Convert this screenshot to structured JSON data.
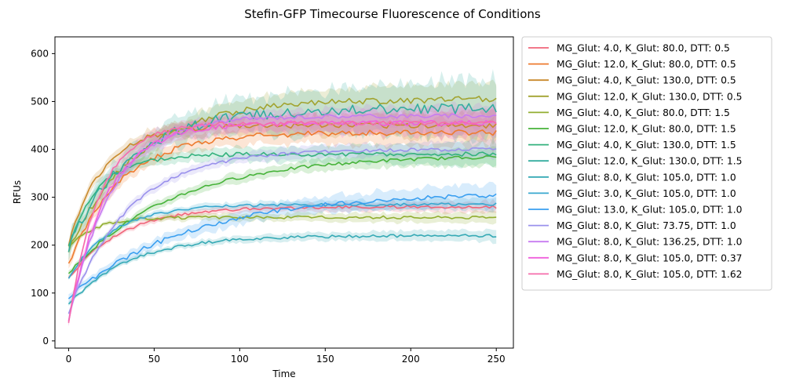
{
  "chart_data": {
    "type": "line",
    "title": "Stefin-GFP Timecourse Fluorescence of Conditions",
    "xlabel": "Time",
    "ylabel": "RFUs",
    "xlim": [
      -8,
      260
    ],
    "ylim": [
      -15,
      635
    ],
    "xticks": [
      0,
      50,
      100,
      150,
      200,
      250
    ],
    "yticks": [
      0,
      100,
      200,
      300,
      400,
      500,
      600
    ],
    "grid": false,
    "legend_position": "outside-right",
    "confidence_bands": true,
    "x_end": 250,
    "series": [
      {
        "name": "MG_Glut: 4.0, K_Glut: 80.0, DTT: 0.5",
        "color": "#f0657a",
        "start": 130,
        "plateau": 280,
        "tau": 30,
        "band": 10
      },
      {
        "name": "MG_Glut: 12.0, K_Glut: 80.0, DTT: 0.5",
        "color": "#ee7b2f",
        "start": 160,
        "plateau": 435,
        "tau": 30,
        "band": 25
      },
      {
        "name": "MG_Glut: 4.0, K_Glut: 130.0, DTT: 0.5",
        "color": "#c98a2d",
        "start": 200,
        "plateau": 450,
        "tau": 20,
        "band": 25
      },
      {
        "name": "MG_Glut: 12.0, K_Glut: 130.0, DTT: 0.5",
        "color": "#a2a330",
        "start": 190,
        "plateau": 505,
        "tau": 40,
        "band": 30
      },
      {
        "name": "MG_Glut: 4.0, K_Glut: 80.0, DTT: 1.5",
        "color": "#92ae31",
        "start": 195,
        "plateau": 258,
        "tau": 15,
        "band": 10
      },
      {
        "name": "MG_Glut: 12.0, K_Glut: 80.0, DTT: 1.5",
        "color": "#47b33a",
        "start": 140,
        "plateau": 388,
        "tau": 60,
        "band": 15
      },
      {
        "name": "MG_Glut: 4.0, K_Glut: 130.0, DTT: 1.5",
        "color": "#34b27e",
        "start": 200,
        "plateau": 390,
        "tau": 18,
        "band": 20
      },
      {
        "name": "MG_Glut: 12.0, K_Glut: 130.0, DTT: 1.5",
        "color": "#35ad9f",
        "start": 195,
        "plateau": 485,
        "tau": 35,
        "band": 50
      },
      {
        "name": "MG_Glut: 8.0, K_Glut: 105.0, DTT: 1.0",
        "color": "#36aab5",
        "start": 75,
        "plateau": 220,
        "tau": 35,
        "band": 10
      },
      {
        "name": "MG_Glut: 3.0, K_Glut: 105.0, DTT: 1.0",
        "color": "#38a8cf",
        "start": 130,
        "plateau": 285,
        "tau": 25,
        "band": 10
      },
      {
        "name": "MG_Glut: 13.0, K_Glut: 105.0, DTT: 1.0",
        "color": "#3a9ff0",
        "start": 90,
        "plateau": 310,
        "tau": 70,
        "band": 20
      },
      {
        "name": "MG_Glut: 8.0, K_Glut: 73.75, DTT: 1.0",
        "color": "#9a91ec",
        "start": 60,
        "plateau": 400,
        "tau": 35,
        "band": 15
      },
      {
        "name": "MG_Glut: 8.0, K_Glut: 136.25, DTT: 1.0",
        "color": "#c77cf0",
        "start": 40,
        "plateau": 470,
        "tau": 25,
        "band": 20
      },
      {
        "name": "MG_Glut: 8.0, K_Glut: 105.0, DTT: 0.37",
        "color": "#ef60dc",
        "start": 40,
        "plateau": 455,
        "tau": 22,
        "band": 25
      },
      {
        "name": "MG_Glut: 8.0, K_Glut: 105.0, DTT: 1.62",
        "color": "#f56cab",
        "start": 40,
        "plateau": 455,
        "tau": 18,
        "band": 20
      }
    ]
  }
}
